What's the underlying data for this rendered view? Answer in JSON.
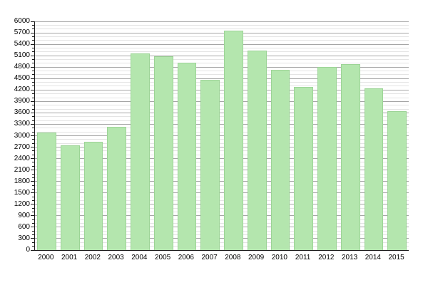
{
  "chart_data": {
    "type": "bar",
    "title": "",
    "xlabel": "",
    "ylabel": "",
    "categories": [
      "2000",
      "2001",
      "2002",
      "2003",
      "2004",
      "2005",
      "2006",
      "2007",
      "2008",
      "2009",
      "2010",
      "2011",
      "2012",
      "2013",
      "2014",
      "2015"
    ],
    "values": [
      3090,
      2740,
      2840,
      3230,
      5150,
      5090,
      4920,
      4460,
      5750,
      5240,
      4720,
      4280,
      4800,
      4880,
      4250,
      3650
    ],
    "ylim": [
      0,
      6000
    ],
    "ytick_major_step": 300,
    "ytick_minor_step": 100,
    "grid": true,
    "legend": "none",
    "colors": {
      "bar_fill": "#b4e6ae",
      "bar_border": "#9cd496",
      "grid_major": "#a6a6a6",
      "grid_minor": "#e4e4e4",
      "axis": "#1a1a1a",
      "background": "#ffffff",
      "label_text": "#000000"
    }
  }
}
